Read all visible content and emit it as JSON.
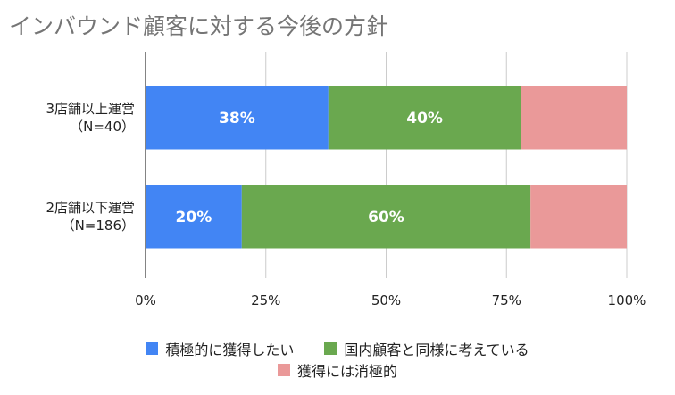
{
  "chart_data": {
    "type": "bar",
    "orientation": "horizontal",
    "stacked": true,
    "title": "インバウンド顧客に対する今後の方針",
    "categories": [
      [
        "3店舗以上運営",
        "（N=40）"
      ],
      [
        "2店舗以下運営",
        "（N=186）"
      ]
    ],
    "series": [
      {
        "name": "積極的に獲得したい",
        "color": "#4285f4",
        "values": [
          38,
          20
        ],
        "labels": [
          "38%",
          "20%"
        ]
      },
      {
        "name": "国内顧客と同様に考えている",
        "color": "#6aa84f",
        "values": [
          40,
          60
        ],
        "labels": [
          "40%",
          "60%"
        ]
      },
      {
        "name": "獲得には消極的",
        "color": "#ea9999",
        "values": [
          22,
          20
        ],
        "labels": [
          "",
          ""
        ]
      }
    ],
    "xlim": [
      0,
      100
    ],
    "x_ticks": [
      "0%",
      "25%",
      "50%",
      "75%",
      "100%"
    ],
    "grid": true,
    "legend_position": "bottom"
  }
}
